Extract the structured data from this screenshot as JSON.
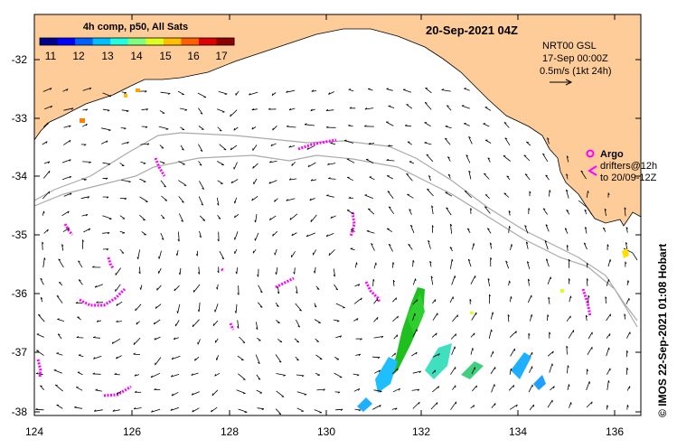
{
  "title": {
    "date": "20-Sep-2021 04Z",
    "composite": "4h comp, p50, All Sats"
  },
  "colorbar": {
    "ticks": [
      "11",
      "12",
      "13",
      "14",
      "15",
      "16",
      "17"
    ],
    "colors": [
      "#00008f",
      "#0000ff",
      "#005fff",
      "#00bfff",
      "#1fffdf",
      "#7fff7f",
      "#dfff1f",
      "#ffbf00",
      "#ff5f00",
      "#df0000",
      "#8f0000"
    ]
  },
  "info": {
    "product": "NRT00 GSL",
    "time": "17-Sep 00:00Z",
    "scale": "0.5m/s (1kt 24h)"
  },
  "legend": {
    "argo": "Argo",
    "drifters": "drifters@12h",
    "to": "to 20/09-12Z"
  },
  "credit": "© IMOS 22-Sep-2021 01:08 Hobart",
  "axes": {
    "x_ticks": [
      "124",
      "126",
      "128",
      "130",
      "132",
      "134",
      "136"
    ],
    "y_ticks": [
      "-32",
      "-33",
      "-34",
      "-35",
      "-36",
      "-37",
      "-38"
    ]
  },
  "colors": {
    "land": "#fdcc99",
    "sea": "#ffffff",
    "drifter": "#ff00ff",
    "contour": "#aaaaaa"
  }
}
